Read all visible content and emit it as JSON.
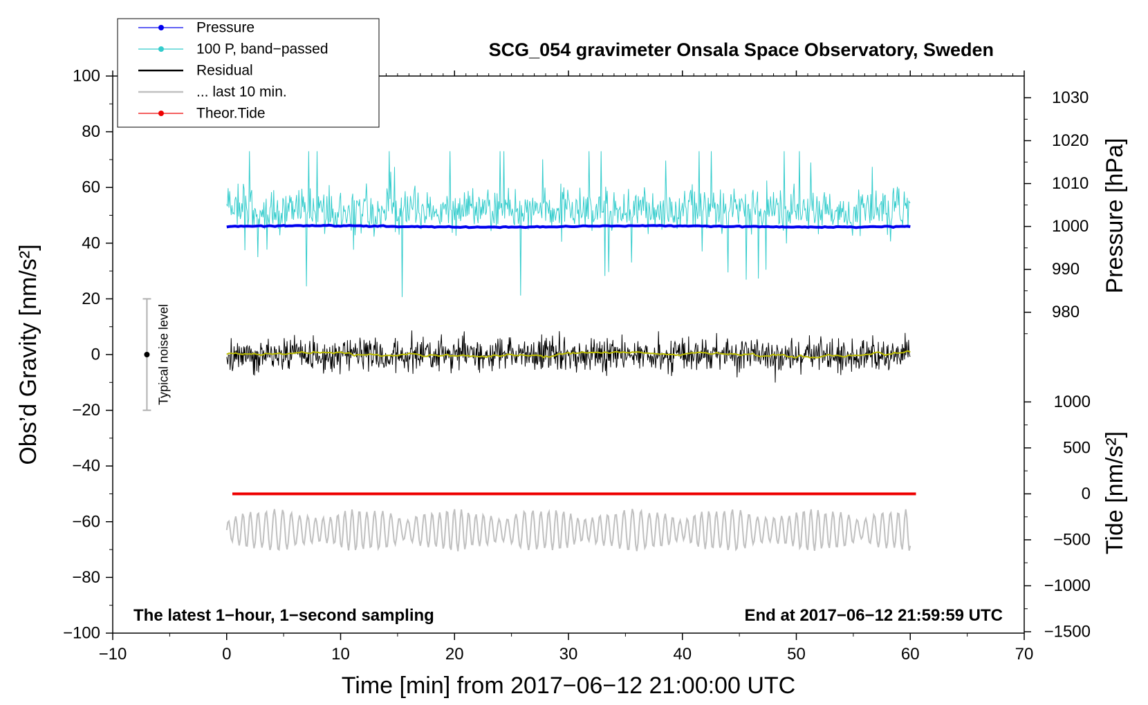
{
  "chart_data": {
    "type": "line",
    "title": "SCG_054 gravimeter Onsala Space Observatory, Sweden",
    "xlabel": "Time [min] from 2017−06−12 21:00:00 UTC",
    "ylabel_left": "Obs’d Gravity [nm/s²]",
    "ylabel_right_top": "Pressure [hPa]",
    "ylabel_right_bottom": "Tide [nm/s²]",
    "xlim": [
      -10,
      70
    ],
    "ylim_left": [
      -100,
      100
    ],
    "x_ticks": [
      "−10",
      "0",
      "10",
      "20",
      "30",
      "40",
      "50",
      "60",
      "70"
    ],
    "x_tick_values": [
      -10,
      0,
      10,
      20,
      30,
      40,
      50,
      60,
      70
    ],
    "y_ticks_left": [
      "100",
      "80",
      "60",
      "40",
      "20",
      "0",
      "−20",
      "−40",
      "−60",
      "−80",
      "−100"
    ],
    "y_tick_values_left": [
      100,
      80,
      60,
      40,
      20,
      0,
      -20,
      -40,
      -60,
      -80,
      -100
    ],
    "pressure_axis": {
      "ticks": [
        "1030",
        "1020",
        "1010",
        "1000",
        "990",
        "980"
      ],
      "values": [
        1030,
        1020,
        1010,
        1000,
        990,
        980
      ],
      "gravity_at_1000": 46,
      "gravity_per_hpa": 1.54
    },
    "tide_axis": {
      "ticks": [
        "1000",
        "500",
        "0",
        "−500",
        "−1000",
        "−1500"
      ],
      "values": [
        1000,
        500,
        0,
        -500,
        -1000,
        -1500
      ],
      "gravity_at_0": -50,
      "gravity_per_unit": 0.033
    },
    "legend": [
      {
        "label": "Pressure",
        "color": "#0000ee",
        "marker": true
      },
      {
        "label": "100 P, band−passed",
        "color": "#33cccc",
        "marker": true
      },
      {
        "label": "Residual",
        "color": "#000000",
        "marker": false
      },
      {
        "label": "... last 10 min.",
        "color": "#c0c0c0",
        "marker": false
      },
      {
        "label": "Theor.Tide",
        "color": "#ee0000",
        "marker": true
      }
    ],
    "series": [
      {
        "name": "Pressure",
        "color": "#0000ee",
        "x_range": [
          0,
          60
        ],
        "level_hpa": 1000,
        "gravity_level": 46
      },
      {
        "name": "100 P, band−passed",
        "color": "#33cccc",
        "x_range": [
          0,
          60
        ],
        "center": 52,
        "range": [
          19,
          73
        ]
      },
      {
        "name": "Residual",
        "color": "#000000",
        "x_range": [
          0,
          60
        ],
        "center": 0,
        "range": [
          -14,
          15
        ]
      },
      {
        "name": "Residual smoothed",
        "color": "#bbbb00",
        "x_range": [
          0,
          60
        ],
        "center": 0,
        "range": [
          -2,
          3
        ]
      },
      {
        "name": "... last 10 min.",
        "color": "#c0c0c0",
        "x_range": [
          0,
          60
        ],
        "center": -63,
        "range": [
          -73,
          -52
        ]
      },
      {
        "name": "Theor.Tide",
        "color": "#ee0000",
        "x_range": [
          0.5,
          60.5
        ],
        "level": 0,
        "gravity_level": -50
      }
    ],
    "noise_bar": {
      "label": "Typical noise level",
      "x": -7,
      "center": 0,
      "range": [
        -20,
        20
      ]
    },
    "annotations": {
      "left": "The latest 1−hour, 1−second sampling",
      "right": "End at 2017−06−12 21:59:59 UTC"
    }
  }
}
